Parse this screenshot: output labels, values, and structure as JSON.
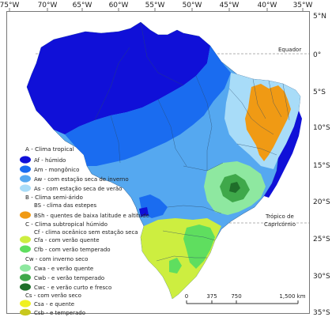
{
  "longitude_labels": [
    "75°W",
    "70°W",
    "65°W",
    "60°W",
    "55°W",
    "50°W",
    "45°W",
    "40°W",
    "35°W"
  ],
  "latitude_labels": [
    "5°N",
    "0°",
    "5°S",
    "10°S",
    "15°S",
    "20°S",
    "25°S",
    "30°S",
    "35°S"
  ],
  "lines": {
    "equator": "Equador",
    "tropic_line1": "Trópico de",
    "tropic_line2": "Capricórnio"
  },
  "legend": {
    "group_a": "A - Clima tropical",
    "af": "Af - húmido",
    "am": "Am - mongônico",
    "aw": "Aw - com estação seca de inverno",
    "as": "As - com estação seca de verão",
    "group_b": "B - Clima semi-árido",
    "bs": "BS - clima das estepes",
    "bsh": "BSh - quentes de baixa latitude e altitude",
    "group_c": "C - Clima subtropical húmido",
    "cf": "Cf - clima oceânico sem estação seca",
    "cfa": "Cfa - com verão quente",
    "cfb": "Cfb - com verão temperado",
    "cw": "Cw - com inverno seco",
    "cwa": "Cwa - e verão quente",
    "cwb": "Cwb - e verão temperado",
    "cwc": "Cwc - e verão curto e fresco",
    "cs": "Cs - com verão seco",
    "csa": "Csa - e quente",
    "csb": "Csb - e temperado"
  },
  "scale_bar": {
    "labels": [
      "0",
      "375",
      "750",
      "1,500 km"
    ]
  },
  "colors": {
    "af": "#1010d8",
    "am": "#1a6cf0",
    "aw": "#55a8f0",
    "as": "#a8dcf8",
    "bsh": "#f09a14",
    "cfa": "#cdee40",
    "cfb": "#5fde5f",
    "cwa": "#8ee8a0",
    "cwb": "#3fa84a",
    "cwc": "#1f6e2a",
    "csa": "#f0f020",
    "csb": "#c8c81e"
  }
}
